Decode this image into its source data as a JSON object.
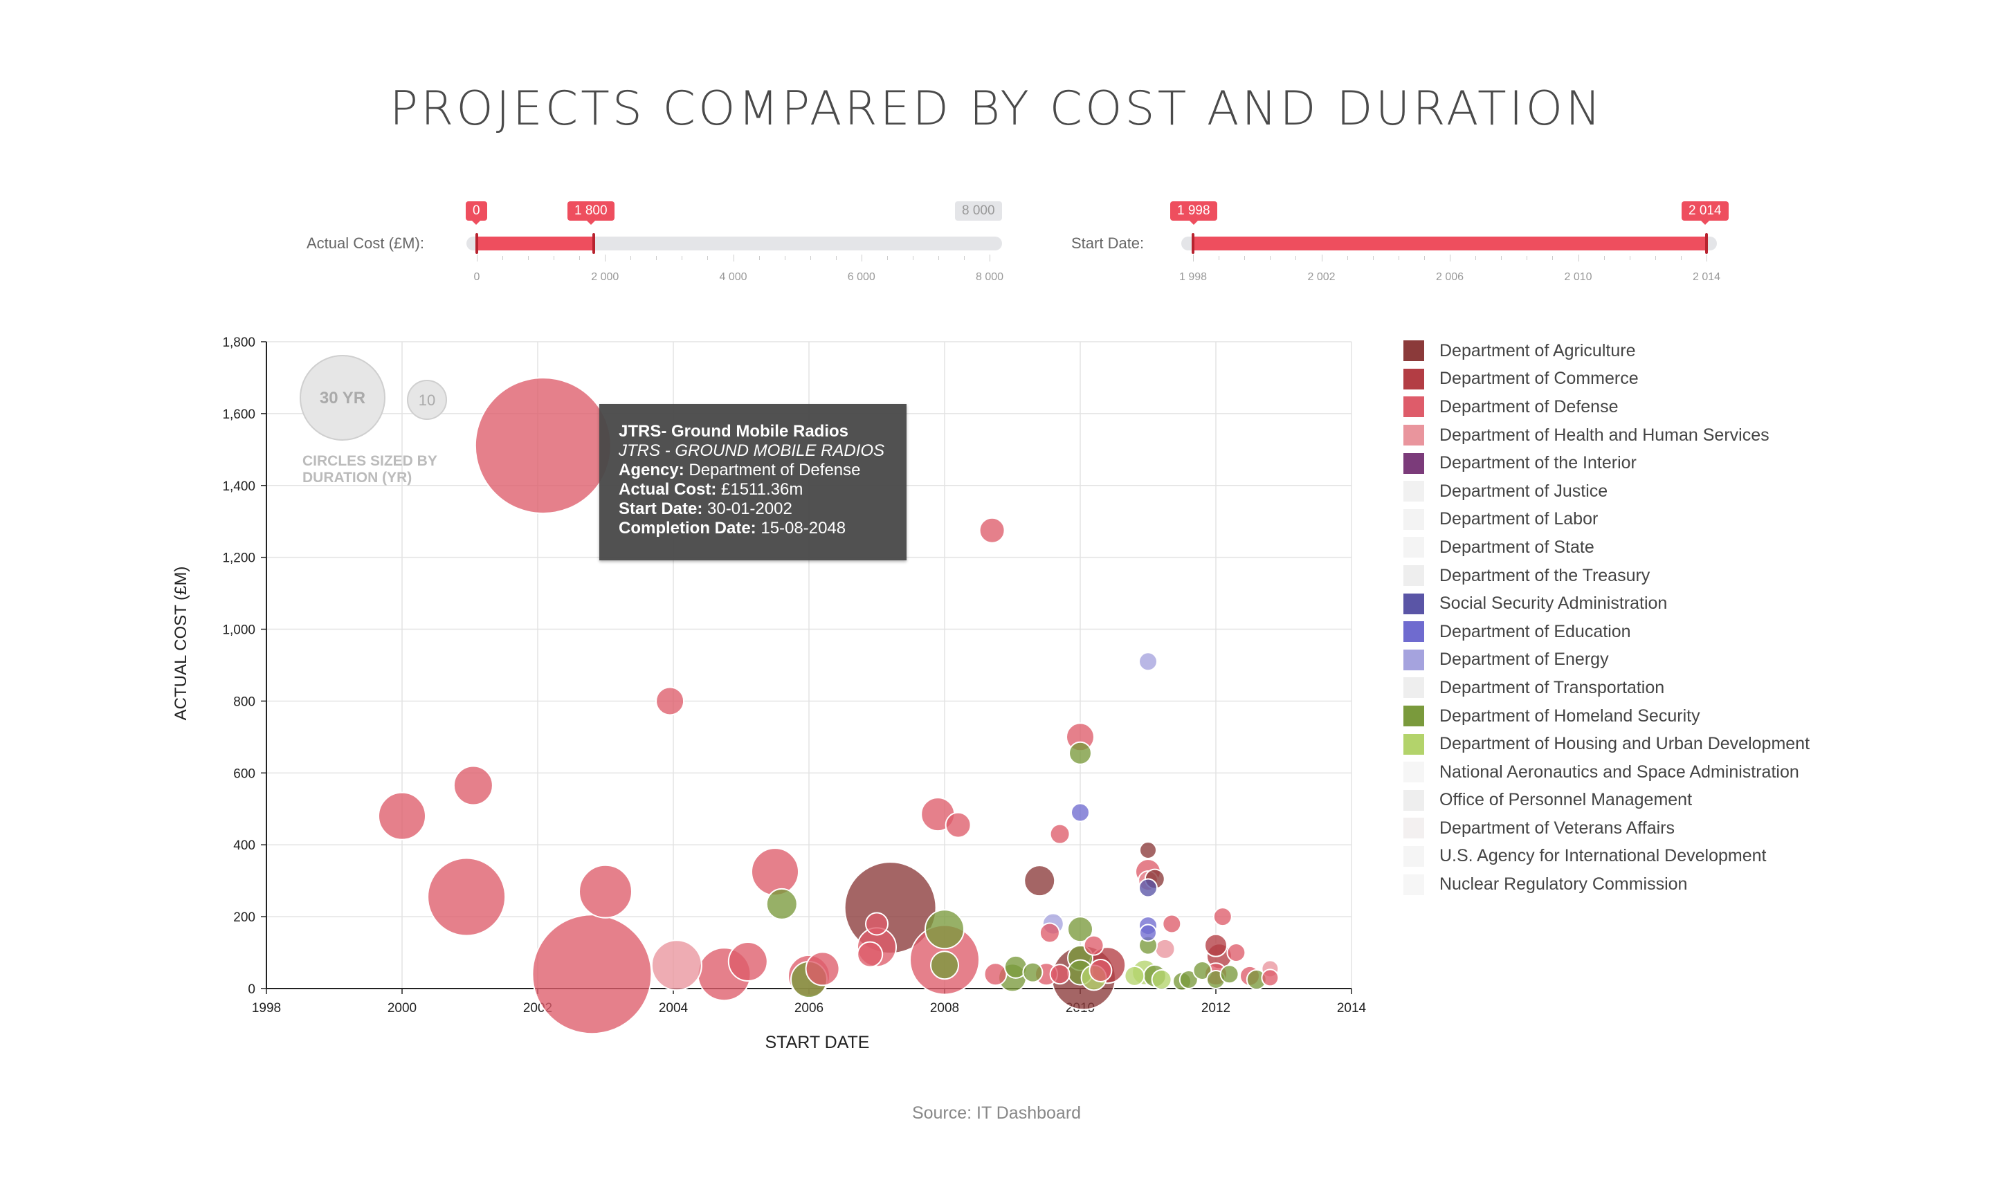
{
  "title": "PROJECTS COMPARED BY COST AND DURATION",
  "filters": {
    "cost": {
      "label": "Actual Cost (£M):",
      "min_tag": "0",
      "max_tag": "1 800",
      "end_tag": "8 000",
      "domain": [
        0,
        8000
      ],
      "selected": [
        0,
        1800
      ],
      "ticks": [
        "0",
        "2 000",
        "4 000",
        "6 000",
        "8 000"
      ]
    },
    "date": {
      "label": "Start Date:",
      "min_tag": "1 998",
      "max_tag": "2 014",
      "domain": [
        1998,
        2014
      ],
      "selected": [
        1998,
        2014
      ],
      "ticks": [
        "1 998",
        "2 002",
        "2 006",
        "2 010",
        "2 014"
      ]
    }
  },
  "size_key": {
    "large_label": "30 YR",
    "small_label": "10",
    "note_line1": "CIRCLES SIZED BY",
    "note_line2": "DURATION (YR)"
  },
  "tooltip": {
    "name": "JTRS- Ground Mobile Radios",
    "subname": "JTRS - GROUND MOBILE RADIOS",
    "agency_label": "Agency:",
    "agency": "Department of Defense",
    "cost_label": "Actual Cost:",
    "cost": "£1511.36m",
    "start_label": "Start Date:",
    "start": "30-01-2002",
    "completion_label": "Completion Date:",
    "completion": "15-08-2048"
  },
  "legend": [
    {
      "label": "Department of Agriculture",
      "color": "#8b3a3a"
    },
    {
      "label": "Department of Commerce",
      "color": "#b33d44"
    },
    {
      "label": "Department of Defense",
      "color": "#de5c6a"
    },
    {
      "label": "Department of Health and Human Services",
      "color": "#e9959d"
    },
    {
      "label": "Department of the Interior",
      "color": "#7b3b7a"
    },
    {
      "label": "Department of Justice",
      "color": "#f1f1f1"
    },
    {
      "label": "Department of Labor",
      "color": "#f3f3f3"
    },
    {
      "label": "Department of State",
      "color": "#f4f4f4"
    },
    {
      "label": "Department of the Treasury",
      "color": "#eeeeee"
    },
    {
      "label": "Social Security Administration",
      "color": "#5a55a6"
    },
    {
      "label": "Department of Education",
      "color": "#6f6bcf"
    },
    {
      "label": "Department of Energy",
      "color": "#a5a3de"
    },
    {
      "label": "Department of Transportation",
      "color": "#eeeeee"
    },
    {
      "label": "Department of Homeland Security",
      "color": "#7a9a3c"
    },
    {
      "label": "Department of Housing and Urban Development",
      "color": "#b3d36b"
    },
    {
      "label": "National Aeronautics and Space Administration",
      "color": "#f6f6f6"
    },
    {
      "label": "Office of Personnel Management",
      "color": "#eeeeee"
    },
    {
      "label": "Department of Veterans Affairs",
      "color": "#f3f0f0"
    },
    {
      "label": "U.S. Agency for International Development",
      "color": "#f5f5f5"
    },
    {
      "label": "Nuclear Regulatory Commission",
      "color": "#f6f6f6"
    }
  ],
  "chart_data": {
    "type": "scatter",
    "title": "PROJECTS COMPARED BY COST AND DURATION",
    "xlabel": "START DATE",
    "ylabel": "ACTUAL COST (£M)",
    "xlim": [
      1998,
      2014
    ],
    "ylim": [
      0,
      1800
    ],
    "x_ticks": [
      "1998",
      "2000",
      "2002",
      "2004",
      "2006",
      "2008",
      "2010",
      "2012",
      "2014"
    ],
    "y_ticks": [
      "0",
      "200",
      "400",
      "600",
      "800",
      "1,000",
      "1,200",
      "1,400",
      "1,600",
      "1,800"
    ],
    "grid": true,
    "size_encoding": "duration (yr)",
    "points": [
      {
        "x": 2002.08,
        "y": 1511,
        "d": 46,
        "agency": "Department of Defense"
      },
      {
        "x": 2002.8,
        "y": 40,
        "d": 40,
        "agency": "Department of Defense"
      },
      {
        "x": 2007.2,
        "y": 225,
        "d": 30,
        "agency": "Department of Agriculture"
      },
      {
        "x": 2000.95,
        "y": 255,
        "d": 25,
        "agency": "Department of Defense"
      },
      {
        "x": 2008.0,
        "y": 80,
        "d": 22,
        "agency": "Department of Defense"
      },
      {
        "x": 2010.05,
        "y": 30,
        "d": 20,
        "agency": "Department of Agriculture"
      },
      {
        "x": 2003.0,
        "y": 270,
        "d": 16,
        "agency": "Department of Defense"
      },
      {
        "x": 2004.75,
        "y": 40,
        "d": 16,
        "agency": "Department of Defense"
      },
      {
        "x": 2000.0,
        "y": 480,
        "d": 14,
        "agency": "Department of Defense"
      },
      {
        "x": 2004.05,
        "y": 65,
        "d": 15,
        "agency": "Department of Health and Human Services"
      },
      {
        "x": 2005.5,
        "y": 325,
        "d": 14,
        "agency": "Department of Defense"
      },
      {
        "x": 2001.05,
        "y": 565,
        "d": 11,
        "agency": "Department of Defense"
      },
      {
        "x": 2005.1,
        "y": 75,
        "d": 11,
        "agency": "Department of Defense"
      },
      {
        "x": 2006.0,
        "y": 35,
        "d": 12,
        "agency": "Department of Defense"
      },
      {
        "x": 2006.2,
        "y": 55,
        "d": 9,
        "agency": "Department of Defense"
      },
      {
        "x": 2007.0,
        "y": 115,
        "d": 11,
        "agency": "Department of Defense"
      },
      {
        "x": 2007.9,
        "y": 485,
        "d": 9,
        "agency": "Department of Defense"
      },
      {
        "x": 2008.2,
        "y": 455,
        "d": 6,
        "agency": "Department of Defense"
      },
      {
        "x": 2008.7,
        "y": 1275,
        "d": 6,
        "agency": "Department of Defense"
      },
      {
        "x": 2003.95,
        "y": 800,
        "d": 7,
        "agency": "Department of Defense"
      },
      {
        "x": 2010.0,
        "y": 700,
        "d": 7,
        "agency": "Department of Defense"
      },
      {
        "x": 2009.7,
        "y": 430,
        "d": 4,
        "agency": "Department of Defense"
      },
      {
        "x": 2010.4,
        "y": 65,
        "d": 10,
        "agency": "Department of Commerce"
      },
      {
        "x": 2009.4,
        "y": 300,
        "d": 8,
        "agency": "Department of Agriculture"
      },
      {
        "x": 2006.9,
        "y": 95,
        "d": 6,
        "agency": "Department of Defense"
      },
      {
        "x": 2007.0,
        "y": 180,
        "d": 5,
        "agency": "Department of Defense"
      },
      {
        "x": 2008.75,
        "y": 40,
        "d": 5,
        "agency": "Department of Defense"
      },
      {
        "x": 2009.5,
        "y": 40,
        "d": 5,
        "agency": "Department of Defense"
      },
      {
        "x": 2009.55,
        "y": 155,
        "d": 4,
        "agency": "Department of Defense"
      },
      {
        "x": 2011.0,
        "y": 325,
        "d": 6,
        "agency": "Department of Defense"
      },
      {
        "x": 2011.0,
        "y": 300,
        "d": 4,
        "agency": "Department of Health and Human Services"
      },
      {
        "x": 2011.1,
        "y": 305,
        "d": 4,
        "agency": "Department of Agriculture"
      },
      {
        "x": 2011.0,
        "y": 385,
        "d": 3,
        "agency": "Department of Agriculture"
      },
      {
        "x": 2011.35,
        "y": 180,
        "d": 3.5,
        "agency": "Department of Defense"
      },
      {
        "x": 2011.25,
        "y": 110,
        "d": 4,
        "agency": "Department of Health and Human Services"
      },
      {
        "x": 2012.0,
        "y": 120,
        "d": 5,
        "agency": "Department of Commerce"
      },
      {
        "x": 2012.05,
        "y": 90,
        "d": 6,
        "agency": "Department of Commerce"
      },
      {
        "x": 2012.1,
        "y": 200,
        "d": 3.5,
        "agency": "Department of Defense"
      },
      {
        "x": 2012.3,
        "y": 100,
        "d": 3.5,
        "agency": "Department of Defense"
      },
      {
        "x": 2012.8,
        "y": 55,
        "d": 3,
        "agency": "Department of Health and Human Services"
      },
      {
        "x": 2012.8,
        "y": 30,
        "d": 3,
        "agency": "Department of Defense"
      },
      {
        "x": 2012.5,
        "y": 35,
        "d": 4,
        "agency": "Department of Defense"
      },
      {
        "x": 2012.0,
        "y": 40,
        "d": 5,
        "agency": "Department of Defense"
      },
      {
        "x": 2010.2,
        "y": 120,
        "d": 4,
        "agency": "Department of Defense"
      },
      {
        "x": 2010.3,
        "y": 50,
        "d": 5,
        "agency": "Department of Defense"
      },
      {
        "x": 2009.7,
        "y": 40,
        "d": 4,
        "agency": "Department of Defense"
      },
      {
        "x": 2011.0,
        "y": 910,
        "d": 3.5,
        "agency": "Department of Energy"
      },
      {
        "x": 2010.0,
        "y": 490,
        "d": 3.5,
        "agency": "Department of Education"
      },
      {
        "x": 2011.0,
        "y": 280,
        "d": 3.5,
        "agency": "Social Security Administration"
      },
      {
        "x": 2011.0,
        "y": 175,
        "d": 3.5,
        "agency": "Department of Education"
      },
      {
        "x": 2011.0,
        "y": 155,
        "d": 3,
        "agency": "Department of Education"
      },
      {
        "x": 2009.6,
        "y": 180,
        "d": 4.5,
        "agency": "Department of Energy"
      },
      {
        "x": 2008.0,
        "y": 165,
        "d": 11,
        "agency": "Department of Homeland Security"
      },
      {
        "x": 2005.6,
        "y": 235,
        "d": 8,
        "agency": "Department of Homeland Security"
      },
      {
        "x": 2006.0,
        "y": 25,
        "d": 10,
        "agency": "Department of Homeland Security"
      },
      {
        "x": 2010.0,
        "y": 655,
        "d": 5,
        "agency": "Department of Homeland Security"
      },
      {
        "x": 2010.0,
        "y": 165,
        "d": 6,
        "agency": "Department of Homeland Security"
      },
      {
        "x": 2008.0,
        "y": 65,
        "d": 7,
        "agency": "Department of Homeland Security"
      },
      {
        "x": 2009.0,
        "y": 30,
        "d": 7,
        "agency": "Department of Homeland Security"
      },
      {
        "x": 2009.05,
        "y": 60,
        "d": 5,
        "agency": "Department of Homeland Security"
      },
      {
        "x": 2009.3,
        "y": 45,
        "d": 4,
        "agency": "Department of Homeland Security"
      },
      {
        "x": 2010.0,
        "y": 85,
        "d": 6,
        "agency": "Department of Homeland Security"
      },
      {
        "x": 2010.0,
        "y": 45,
        "d": 6,
        "agency": "Department of Homeland Security"
      },
      {
        "x": 2010.2,
        "y": 30,
        "d": 6,
        "agency": "Department of Housing and Urban Development"
      },
      {
        "x": 2010.8,
        "y": 35,
        "d": 4,
        "agency": "Department of Housing and Urban Development"
      },
      {
        "x": 2010.95,
        "y": 45,
        "d": 6,
        "agency": "Department of Housing and Urban Development"
      },
      {
        "x": 2011.0,
        "y": 120,
        "d": 3.5,
        "agency": "Department of Homeland Security"
      },
      {
        "x": 2011.1,
        "y": 35,
        "d": 5,
        "agency": "Department of Homeland Security"
      },
      {
        "x": 2011.2,
        "y": 25,
        "d": 4,
        "agency": "Department of Housing and Urban Development"
      },
      {
        "x": 2011.5,
        "y": 20,
        "d": 3.5,
        "agency": "Department of Homeland Security"
      },
      {
        "x": 2011.6,
        "y": 25,
        "d": 3.5,
        "agency": "Department of Homeland Security"
      },
      {
        "x": 2011.8,
        "y": 50,
        "d": 3.5,
        "agency": "Department of Homeland Security"
      },
      {
        "x": 2012.0,
        "y": 25,
        "d": 3.5,
        "agency": "Department of Homeland Security"
      },
      {
        "x": 2012.2,
        "y": 40,
        "d": 3.5,
        "agency": "Department of Homeland Security"
      },
      {
        "x": 2012.6,
        "y": 25,
        "d": 4,
        "agency": "Department of Homeland Security"
      }
    ]
  },
  "source": "Source: IT Dashboard"
}
